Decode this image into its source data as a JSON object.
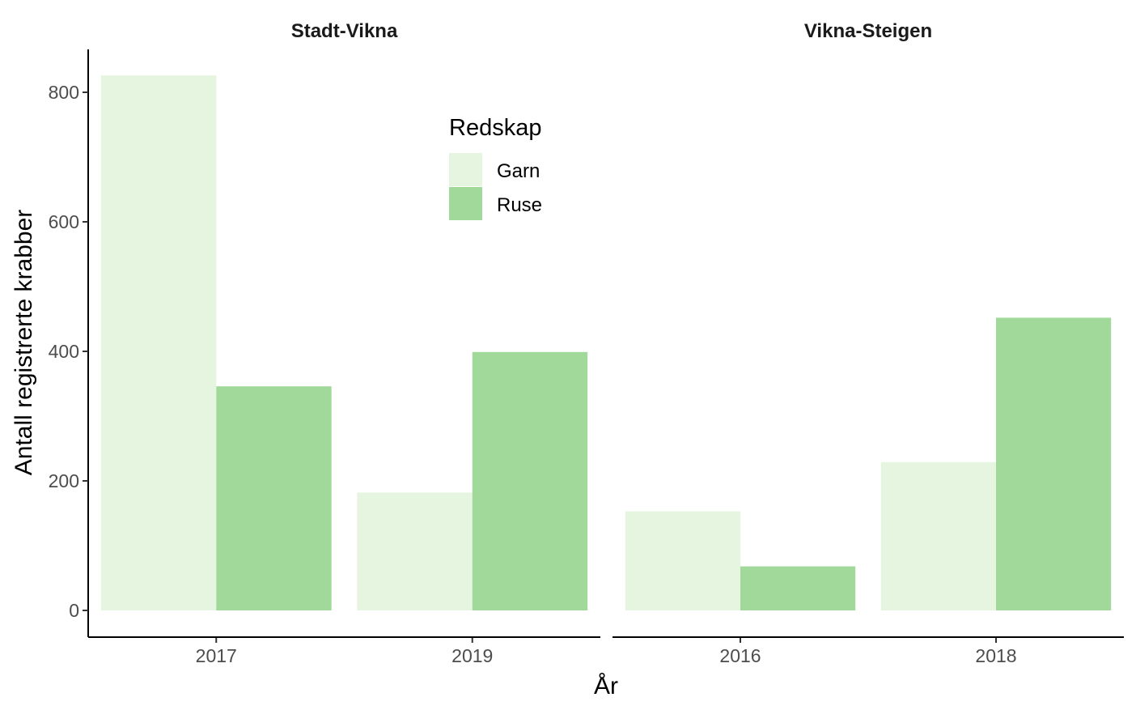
{
  "chart_data": {
    "type": "bar",
    "xlabel": "År",
    "ylabel": "Antall registrerte krabber",
    "ylim": [
      0,
      860
    ],
    "yticks": [
      0,
      200,
      400,
      600,
      800
    ],
    "grid": false,
    "legend": {
      "title": "Redskap",
      "placement": "top-right of left panel",
      "entries": [
        {
          "name": "Garn",
          "color": "#e5f5e0"
        },
        {
          "name": "Ruse",
          "color": "#a1d99b"
        }
      ]
    },
    "panels": [
      {
        "title": "Stadt-Vikna",
        "categories": [
          "2017",
          "2019"
        ],
        "series": [
          {
            "name": "Garn",
            "color": "#e5f5e0",
            "values": [
              826,
              182
            ]
          },
          {
            "name": "Ruse",
            "color": "#a1d99b",
            "values": [
              346,
              399
            ]
          }
        ]
      },
      {
        "title": "Vikna-Steigen",
        "categories": [
          "2016",
          "2018"
        ],
        "series": [
          {
            "name": "Garn",
            "color": "#e5f5e0",
            "values": [
              153,
              229
            ]
          },
          {
            "name": "Ruse",
            "color": "#a1d99b",
            "values": [
              68,
              452
            ]
          }
        ]
      }
    ]
  }
}
